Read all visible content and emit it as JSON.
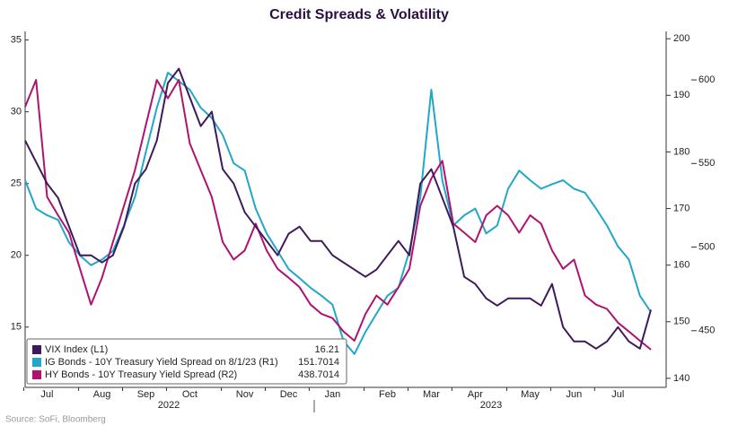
{
  "chart_data": {
    "type": "line",
    "title": "Credit Spreads & Volatility",
    "source": "Source: SoFi, Bloomberg",
    "categories": [
      null,
      null,
      "Jul",
      null,
      null,
      null,
      null,
      "Aug",
      null,
      null,
      null,
      "Sep",
      null,
      null,
      null,
      "Oct",
      null,
      null,
      null,
      null,
      "Nov",
      null,
      null,
      null,
      "Dec",
      null,
      null,
      null,
      "Jan",
      null,
      null,
      null,
      null,
      "Feb",
      null,
      null,
      null,
      "Mar",
      null,
      null,
      null,
      "Apr",
      null,
      null,
      null,
      null,
      "May",
      null,
      null,
      null,
      "Jun",
      null,
      null,
      null,
      "Jul",
      null,
      null,
      null
    ],
    "year_labels": [
      "2022",
      "2023"
    ],
    "ylim": [
      10.8,
      35.6
    ],
    "yticks": [
      15,
      20,
      25,
      30,
      35
    ],
    "y2lim": [
      138.4,
      201.3
    ],
    "y2ticks": [
      140,
      150,
      160,
      170,
      180,
      190,
      200
    ],
    "y3lim": [
      416.1,
      629
    ],
    "y3ticks": [
      450,
      500,
      550,
      600
    ],
    "series": [
      {
        "name": "VIX Index (L1)",
        "color": "#3d1a5b",
        "axis": "y",
        "legend_value": 16.21,
        "values": [
          28,
          26.5,
          25,
          24,
          22,
          20,
          20,
          19.5,
          20,
          22,
          25,
          26,
          28,
          32,
          33,
          31,
          29,
          30,
          26,
          25,
          23,
          22,
          21,
          20,
          21.5,
          22,
          21,
          21,
          20,
          19.5,
          19,
          18.5,
          19,
          20,
          21,
          20,
          25,
          26,
          24,
          22,
          18.5,
          18,
          17,
          16.5,
          17,
          17,
          17,
          16.5,
          18,
          15,
          14,
          14,
          13.5,
          14,
          15,
          14,
          13.5,
          16.21
        ]
      },
      {
        "name": "IG Bonds - 10Y Treasury Yield Spread on 8/1/23 (R1)",
        "color": "#22a7c9",
        "axis": "y2",
        "legend_value": 151.7014,
        "values": [
          175,
          170,
          168.8,
          168,
          164,
          161.7,
          160,
          161,
          162.5,
          167,
          172,
          180,
          187.8,
          194,
          192.5,
          191,
          187.8,
          186,
          183,
          178,
          176.7,
          170,
          165.6,
          162.5,
          159.3,
          157.7,
          156,
          154.6,
          153,
          146.6,
          144.3,
          148.2,
          151.4,
          154.6,
          156,
          162.5,
          172,
          191,
          175,
          167,
          168.8,
          170,
          165.6,
          167,
          173.5,
          176.7,
          175,
          173.5,
          174.3,
          175,
          173.5,
          172.8,
          170,
          167,
          163.3,
          161,
          154.6,
          151.7014
        ]
      },
      {
        "name": "HY Bonds - 10Y Treasury Yield Spread (R2)",
        "color": "#b0136f",
        "axis": "y3",
        "legend_value": 438.7014,
        "values": [
          583.9,
          600,
          530,
          519,
          508.6,
          487,
          465.6,
          481.7,
          503,
          524.7,
          546,
          573,
          600,
          589,
          600,
          562,
          546,
          530,
          503,
          492.5,
          498,
          514,
          498,
          487,
          481.7,
          476,
          465.6,
          460,
          457.5,
          449.5,
          444,
          460,
          471,
          465.6,
          476,
          487,
          524.7,
          541,
          551.6,
          514,
          508.6,
          503,
          519,
          524.7,
          519,
          508.6,
          519,
          514,
          498,
          487,
          492.5,
          471,
          465.6,
          463,
          454.8,
          449.5,
          444,
          438.7014
        ]
      }
    ]
  }
}
